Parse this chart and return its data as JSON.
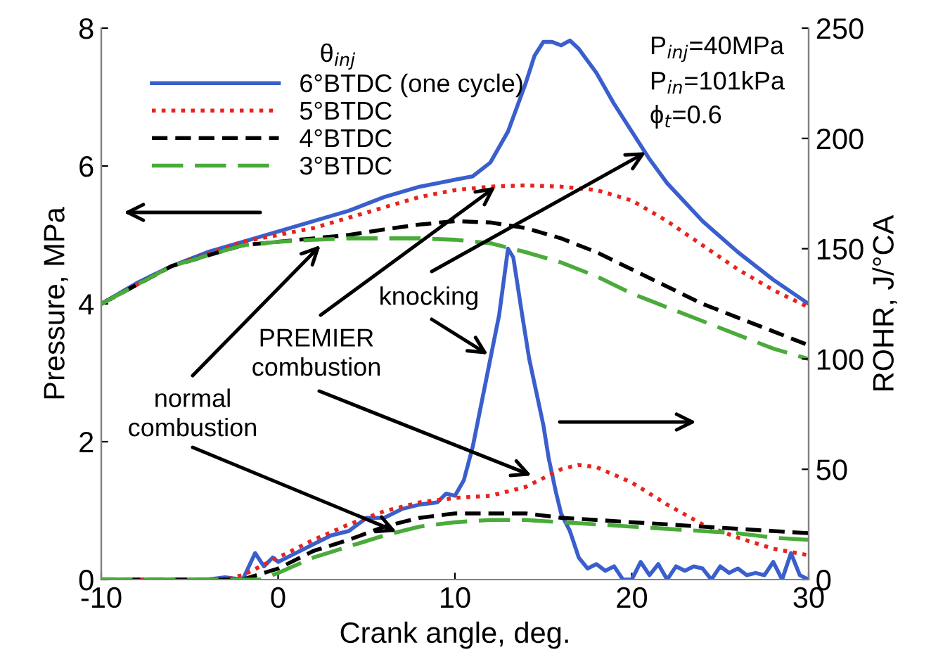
{
  "chart_data": {
    "type": "line",
    "xlabel": "Crank angle, deg.",
    "ylabel": "Pressure, MPa",
    "y2label": "ROHR, J/°CA",
    "legend_title": "θ$_{inj}$",
    "legend": "top left",
    "grid": false,
    "xlim": [
      -10,
      30
    ],
    "xticks": [
      -10,
      0,
      10,
      20,
      30
    ],
    "ylim": [
      0,
      8
    ],
    "yticks": [
      0,
      2,
      4,
      6,
      8
    ],
    "y2lim": [
      0,
      250
    ],
    "y2ticks": [
      0,
      50,
      100,
      150,
      200,
      250
    ],
    "series": [
      {
        "name": "6°BTDC (one cycle)",
        "color": "#3a5fcd",
        "line_style": "solid",
        "x": [
          -10,
          -8,
          -6,
          -4,
          -2,
          0,
          2,
          4,
          6,
          8,
          10,
          11,
          12,
          13,
          14,
          14.5,
          15,
          15.5,
          16,
          16.5,
          17,
          18,
          19,
          20,
          21,
          22,
          24,
          26,
          28,
          30
        ],
        "values": [
          4.0,
          4.3,
          4.55,
          4.75,
          4.9,
          5.05,
          5.2,
          5.35,
          5.55,
          5.7,
          5.8,
          5.85,
          6.05,
          6.5,
          7.2,
          7.6,
          7.8,
          7.8,
          7.75,
          7.82,
          7.7,
          7.35,
          6.9,
          6.5,
          6.1,
          5.75,
          5.2,
          4.75,
          4.35,
          4.0
        ]
      },
      {
        "name": "5°BTDC",
        "color": "#e8231d",
        "line_style": "dotted",
        "x": [
          -10,
          -6,
          -2,
          0,
          2,
          4,
          6,
          8,
          10,
          12,
          14,
          16,
          18,
          20,
          22,
          24,
          26,
          28,
          30
        ],
        "values": [
          4.0,
          4.55,
          4.9,
          5.0,
          5.1,
          5.25,
          5.4,
          5.55,
          5.65,
          5.7,
          5.72,
          5.7,
          5.65,
          5.5,
          5.2,
          4.85,
          4.5,
          4.2,
          3.95
        ]
      },
      {
        "name": "4°BTDC",
        "color": "#000000",
        "line_style": "dashed",
        "x": [
          -10,
          -6,
          -2,
          0,
          2,
          4,
          6,
          8,
          10,
          12,
          14,
          16,
          18,
          20,
          22,
          24,
          26,
          28,
          30
        ],
        "values": [
          4.0,
          4.55,
          4.85,
          4.9,
          4.95,
          5.0,
          5.08,
          5.15,
          5.2,
          5.18,
          5.1,
          4.95,
          4.75,
          4.5,
          4.25,
          4.0,
          3.8,
          3.6,
          3.4
        ]
      },
      {
        "name": "3°BTDC",
        "color": "#4aab3a",
        "line_style": "dashed",
        "x": [
          -10,
          -6,
          -2,
          0,
          2,
          4,
          6,
          8,
          10,
          12,
          14,
          16,
          18,
          20,
          22,
          24,
          26,
          28,
          30
        ],
        "values": [
          4.0,
          4.55,
          4.85,
          4.9,
          4.93,
          4.95,
          4.95,
          4.95,
          4.93,
          4.88,
          4.75,
          4.6,
          4.4,
          4.15,
          3.95,
          3.75,
          3.55,
          3.35,
          3.2
        ]
      },
      {
        "color": "#3a5fcd",
        "line_style": "solid",
        "axis": "y2",
        "x": [
          -10,
          -4,
          -3,
          -2,
          -1.3,
          -0.8,
          -0.3,
          0,
          1,
          2,
          3,
          4,
          5,
          6,
          7,
          8,
          9,
          9.5,
          10,
          10.5,
          11,
          11.5,
          12,
          12.5,
          13,
          13.3,
          13.8,
          14.2,
          14.6,
          15,
          15.3,
          15.7,
          16,
          16.5,
          17,
          17.5,
          18,
          18.5,
          19,
          19.5,
          20,
          20.5,
          21,
          21.5,
          22,
          22.5,
          23,
          23.5,
          24,
          24.5,
          25,
          25.5,
          26,
          26.5,
          27,
          27.5,
          28,
          28.5,
          29,
          29.5,
          30
        ],
        "values": [
          0,
          0,
          1,
          0,
          12,
          6,
          10,
          8,
          12,
          16,
          20,
          22,
          28,
          28,
          32,
          34,
          35,
          39,
          38,
          45,
          60,
          80,
          100,
          120,
          150,
          146,
          120,
          100,
          85,
          70,
          55,
          40,
          30,
          22,
          10,
          5,
          7,
          4,
          6,
          0,
          0,
          8,
          2,
          7,
          0,
          6,
          4,
          6,
          5,
          0,
          6,
          3,
          5,
          2,
          3,
          2,
          8,
          0,
          12,
          2,
          0
        ]
      },
      {
        "color": "#e8231d",
        "line_style": "dotted",
        "axis": "y2",
        "x": [
          -10,
          -3,
          -2,
          -1,
          0,
          2,
          4,
          6,
          8,
          10,
          12,
          14,
          16,
          17,
          18,
          20,
          22,
          24,
          26,
          28,
          30
        ],
        "values": [
          0,
          0,
          2,
          6,
          10,
          18,
          25,
          31,
          35,
          37,
          38,
          42,
          50,
          52,
          51,
          44,
          34,
          25,
          19,
          14,
          11
        ]
      },
      {
        "color": "#000000",
        "line_style": "dashed",
        "axis": "y2",
        "x": [
          -10,
          -2,
          0,
          2,
          4,
          6,
          8,
          10,
          12,
          14,
          16,
          18,
          20,
          22,
          24,
          26,
          28,
          30
        ],
        "values": [
          0,
          0,
          5,
          13,
          18,
          24,
          28,
          30,
          30,
          30,
          28,
          27,
          26,
          25,
          24,
          23,
          22,
          21
        ]
      },
      {
        "color": "#4aab3a",
        "line_style": "dashed",
        "axis": "y2",
        "x": [
          -10,
          -1,
          0,
          2,
          4,
          6,
          8,
          10,
          12,
          14,
          16,
          18,
          20,
          22,
          24,
          26,
          28,
          30
        ],
        "values": [
          0,
          0,
          3,
          10,
          15,
          20,
          24,
          26,
          27,
          27,
          26,
          25,
          24,
          23,
          22,
          21,
          19,
          18
        ]
      }
    ],
    "annotations": [
      "P$_{inj}$=40MPa",
      "P$_{in}$=101kPa",
      "ϕ$_{t}$=0.6",
      {
        "text": "knocking",
        "x": 20.8,
        "y": 6.2
      },
      {
        "text": "PREMIER\ncombustion",
        "x": 12.3,
        "y": 5.7
      },
      {
        "text": "normal\ncombustion",
        "x": 2.4,
        "y": 4.85
      }
    ]
  }
}
